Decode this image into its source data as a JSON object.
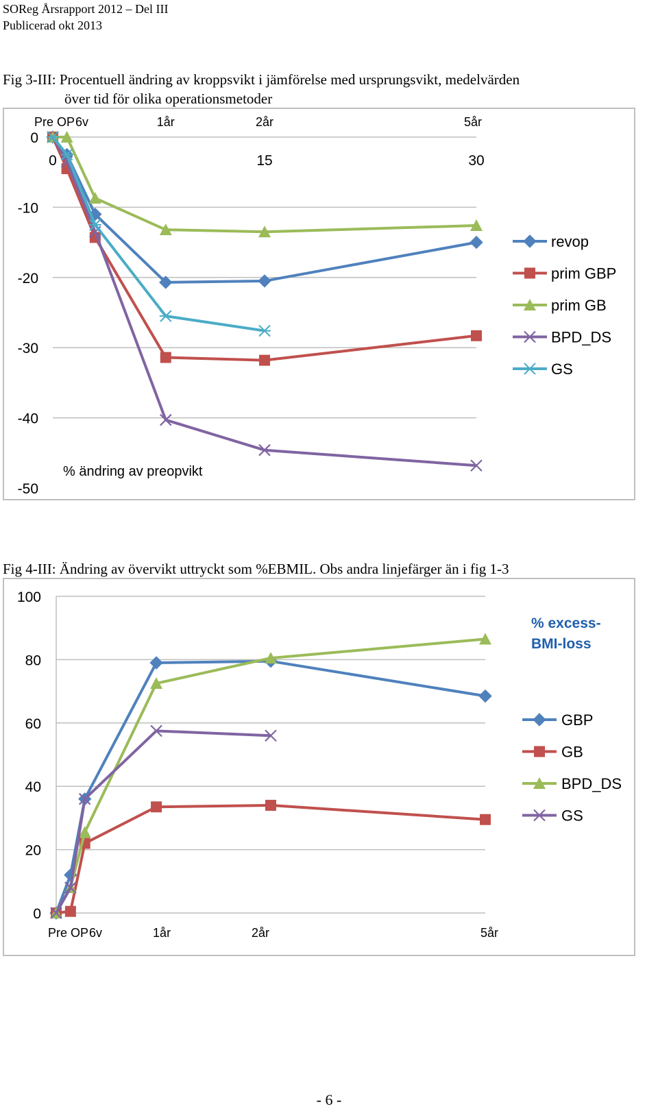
{
  "header": {
    "line1": "SOReg Årsrapport 2012 – Del III",
    "line2": "Publicerad okt 2013"
  },
  "fig3": {
    "caption_line1": "Fig 3-III: Procentuell ändring av kroppsvikt i jämförelse med ursprungsvikt, medelvärden",
    "caption_line2": "över tid för olika operationsmetoder"
  },
  "fig4": {
    "caption": "Fig 4-III: Ändring av övervikt uttryckt som %EBMIL. Obs andra linjefärger än i fig 1-3"
  },
  "page_number": "- 6 -",
  "chart_data": [
    {
      "type": "line",
      "title": "",
      "ylabel": "% ändring av preopvikt",
      "ylim": [
        -50,
        0
      ],
      "yticks": [
        "0",
        "-10",
        "-20",
        "-30",
        "-40",
        "-50"
      ],
      "top_category_labels": [
        "Pre OP",
        "6v",
        "1år",
        "2år",
        "5år"
      ],
      "secondary_axis_labels": [
        "0",
        "15",
        "30"
      ],
      "x": [
        0,
        1,
        3,
        8,
        15,
        30
      ],
      "series": [
        {
          "name": "revop",
          "color": "#4F81BD",
          "marker": "diamond",
          "values": [
            0,
            -2.5,
            -11,
            -20.7,
            -20.5,
            -15
          ]
        },
        {
          "name": "prim GBP",
          "color": "#C0504D",
          "marker": "square",
          "values": [
            0,
            -4.5,
            -14.3,
            -31.4,
            -31.8,
            -28.3
          ]
        },
        {
          "name": "prim GB",
          "color": "#9BBB59",
          "marker": "triangle",
          "values": [
            0,
            0,
            -8.7,
            -13.2,
            -13.5,
            -12.6
          ]
        },
        {
          "name": "BPD_DS",
          "color": "#8064A2",
          "marker": "x",
          "values": [
            0,
            -3.5,
            -13.5,
            -40.3,
            -44.6,
            -46.8
          ]
        },
        {
          "name": "GS",
          "color": "#4BACC6",
          "marker": "asterisk",
          "values": [
            0,
            -2.5,
            -12.5,
            -25.5,
            -27.6,
            null
          ]
        }
      ],
      "legend": "right"
    },
    {
      "type": "line",
      "title": "",
      "annotation": "% excess-BMI-loss",
      "ylim": [
        0,
        100
      ],
      "yticks": [
        "100",
        "80",
        "60",
        "40",
        "20",
        "0"
      ],
      "categories": [
        "Pre OP",
        "6v",
        "1år",
        "2år",
        "5år"
      ],
      "x": [
        0,
        1,
        2,
        7,
        15,
        30
      ],
      "series": [
        {
          "name": "GBP",
          "color": "#4F81BD",
          "marker": "diamond",
          "values": [
            0,
            12,
            36,
            79,
            79.5,
            68.5
          ]
        },
        {
          "name": "GB",
          "color": "#C0504D",
          "marker": "square",
          "values": [
            0,
            0.5,
            22,
            33.5,
            34,
            29.5
          ]
        },
        {
          "name": "BPD_DS",
          "color": "#9BBB59",
          "marker": "triangle",
          "values": [
            0,
            8,
            25.5,
            72.5,
            80.5,
            86.5
          ]
        },
        {
          "name": "GS",
          "color": "#8064A2",
          "marker": "x",
          "values": [
            0,
            8,
            36,
            57.5,
            56,
            null
          ]
        }
      ],
      "legend": "right"
    }
  ]
}
